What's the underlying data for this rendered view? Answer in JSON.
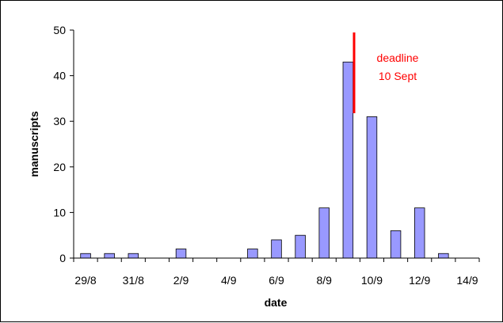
{
  "chart_data": {
    "type": "bar",
    "categories": [
      "29/8",
      "30/8",
      "31/8",
      "1/9",
      "2/9",
      "3/9",
      "4/9",
      "5/9",
      "6/9",
      "7/9",
      "8/9",
      "9/9",
      "10/9",
      "11/9",
      "12/9",
      "13/9",
      "14/9"
    ],
    "x_tick_labels": [
      "29/8",
      "31/8",
      "2/9",
      "4/9",
      "6/9",
      "8/9",
      "10/9",
      "12/9",
      "14/9"
    ],
    "values": [
      1,
      1,
      1,
      0,
      2,
      0,
      0,
      2,
      4,
      5,
      11,
      43,
      31,
      6,
      11,
      1,
      0
    ],
    "ylim": [
      0,
      50
    ],
    "y_ticks": [
      0,
      10,
      20,
      30,
      40,
      50
    ],
    "xlabel": "date",
    "ylabel": "manuscripts",
    "grid": false,
    "bar_color": "#9999ff",
    "annotation": {
      "lines": [
        "deadline",
        "10 Sept"
      ],
      "color": "#ff0000",
      "position_date": "between 9/9 and 10/9"
    }
  }
}
